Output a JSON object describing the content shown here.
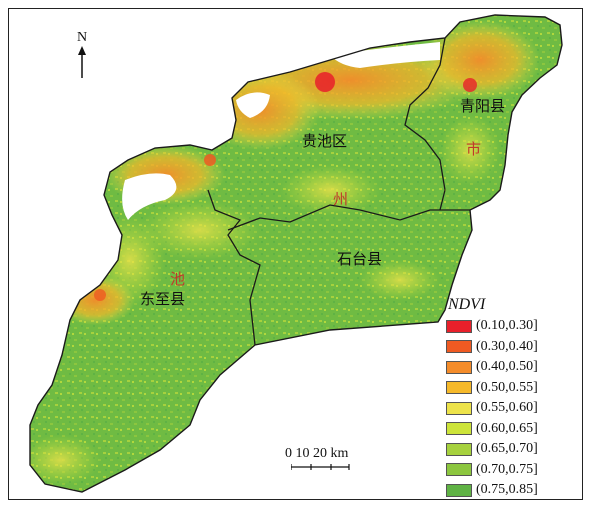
{
  "map": {
    "north_label": "N",
    "places": {
      "guichi": "贵池区",
      "qingyang": "青阳县",
      "shitai": "石台县",
      "dongzhi": "东至县"
    },
    "city_chars": [
      "池",
      "州",
      "市"
    ],
    "scale_label": "0  10 20 km",
    "legend": {
      "title": "NDVI",
      "items": [
        {
          "label": "(0.10,0.30]",
          "color": "#e8202a"
        },
        {
          "label": "(0.30,0.40]",
          "color": "#ef5a22"
        },
        {
          "label": "(0.40,0.50]",
          "color": "#f48c2a"
        },
        {
          "label": "(0.50,0.55]",
          "color": "#f6b92a"
        },
        {
          "label": "(0.55,0.60]",
          "color": "#ede34a"
        },
        {
          "label": "(0.60,0.65]",
          "color": "#cde43a"
        },
        {
          "label": "(0.65,0.70]",
          "color": "#a6d13e"
        },
        {
          "label": "(0.70,0.75]",
          "color": "#8cc63f"
        },
        {
          "label": "(0.75,0.85]",
          "color": "#5fb244"
        }
      ]
    }
  }
}
